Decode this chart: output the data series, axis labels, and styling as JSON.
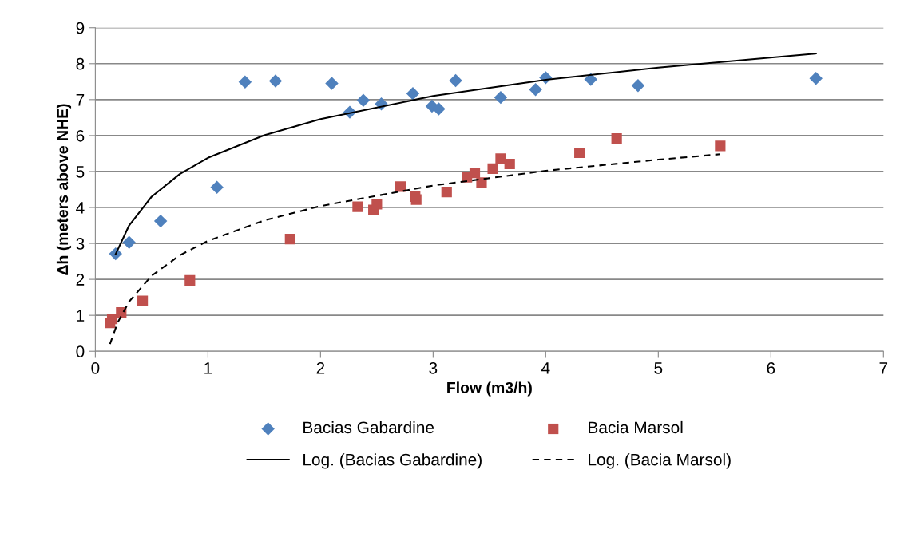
{
  "chart_data": {
    "type": "scatter",
    "xlabel": "Flow (m3/h)",
    "ylabel": "Δh (meters above NHE)",
    "xlim": [
      0,
      7
    ],
    "xticks": [
      0,
      1,
      2,
      3,
      4,
      5,
      6,
      7
    ],
    "ylim": [
      0,
      9
    ],
    "yticks": [
      0,
      1,
      2,
      3,
      4,
      5,
      6,
      7,
      8,
      9
    ],
    "grid": "y",
    "legend": "bottom",
    "series": [
      {
        "name": "Bacias Gabardine",
        "color": "#4f81bd",
        "marker": "diamond",
        "x": [
          0.18,
          0.3,
          0.58,
          1.08,
          1.33,
          1.6,
          2.1,
          2.26,
          2.38,
          2.54,
          2.82,
          2.99,
          3.05,
          3.2,
          3.6,
          3.91,
          4.0,
          4.4,
          4.82,
          6.4
        ],
        "values": [
          2.71,
          3.03,
          3.62,
          4.56,
          7.49,
          7.52,
          7.45,
          6.65,
          6.98,
          6.88,
          7.17,
          6.82,
          6.74,
          7.53,
          7.06,
          7.28,
          7.61,
          7.56,
          7.39,
          7.59
        ]
      },
      {
        "name": "Log. (Bacias Gabardine)",
        "type": "line",
        "color": "#000000",
        "marker": "none",
        "line_style": "solid",
        "x": [
          0.18,
          0.3,
          0.5,
          0.75,
          1,
          1.5,
          2,
          3,
          4,
          5,
          6.4
        ],
        "values": [
          2.7,
          3.5,
          4.3,
          4.93,
          5.38,
          6.01,
          6.46,
          7.1,
          7.55,
          7.89,
          8.28
        ]
      },
      {
        "name": "Bacia Marsol",
        "color": "#c0504d",
        "marker": "square",
        "x": [
          0.13,
          0.15,
          0.23,
          0.42,
          0.84,
          1.73,
          2.33,
          2.47,
          2.5,
          2.71,
          2.84,
          2.85,
          3.12,
          3.3,
          3.37,
          3.43,
          3.53,
          3.6,
          3.68,
          4.3,
          4.63,
          5.55
        ],
        "values": [
          0.79,
          0.9,
          1.08,
          1.4,
          1.97,
          3.12,
          4.02,
          3.93,
          4.09,
          4.58,
          4.3,
          4.22,
          4.43,
          4.84,
          4.96,
          4.69,
          5.08,
          5.36,
          5.21,
          5.52,
          5.92,
          5.71
        ]
      },
      {
        "name": "Log. (Bacia Marsol)",
        "type": "line",
        "color": "#000000",
        "marker": "none",
        "line_style": "dashed",
        "x": [
          0.13,
          0.2,
          0.3,
          0.5,
          0.75,
          1,
          1.5,
          2,
          3,
          4,
          5,
          5.55
        ],
        "values": [
          0.2,
          0.81,
          1.38,
          2.1,
          2.67,
          3.07,
          3.64,
          4.04,
          4.61,
          5.02,
          5.33,
          5.48
        ]
      }
    ]
  }
}
